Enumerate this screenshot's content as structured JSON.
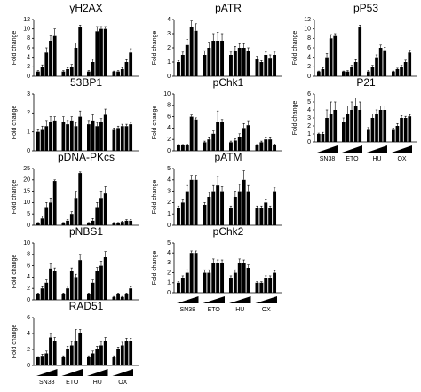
{
  "chart_data": [
    {
      "type": "bar",
      "title": "γH2AX",
      "y_label": "Fold change",
      "ylim": [
        0,
        12
      ],
      "yticks": [
        0,
        2,
        4,
        6,
        8,
        10,
        12
      ],
      "values": [
        1,
        2,
        5,
        7.5,
        8.5,
        1,
        1.5,
        2,
        6,
        10.5,
        1,
        3,
        9.5,
        10,
        10,
        1,
        1,
        1.5,
        3,
        5
      ],
      "errors": [
        0.2,
        0.4,
        1,
        1,
        1.5,
        0.2,
        0.3,
        0.5,
        1,
        0.3,
        0.2,
        0.6,
        1,
        0.5,
        0.5,
        0.1,
        0.2,
        0.3,
        0.5,
        0.8
      ]
    },
    {
      "type": "bar",
      "title": "53BP1",
      "y_label": "Fold change",
      "ylim": [
        0,
        3
      ],
      "yticks": [
        0,
        1,
        2,
        3
      ],
      "values": [
        1,
        1.1,
        1.3,
        1.5,
        1.6,
        1.5,
        1.4,
        1.6,
        1.3,
        1.8,
        1.4,
        1.6,
        1.3,
        1.5,
        1.9,
        1.1,
        1.2,
        1.3,
        1.3,
        1.4
      ],
      "errors": [
        0.1,
        0.2,
        0.3,
        0.3,
        0.2,
        0.3,
        0.2,
        0.2,
        0.2,
        0.3,
        0.2,
        0.3,
        0.2,
        0.2,
        0.3,
        0.1,
        0.1,
        0.1,
        0.1,
        0.1
      ]
    },
    {
      "type": "bar",
      "title": "pDNA-PKcs",
      "y_label": "Fold change",
      "ylim": [
        0,
        25
      ],
      "yticks": [
        0,
        5,
        10,
        15,
        20,
        25
      ],
      "values": [
        1,
        3,
        8,
        10,
        19.5,
        1,
        2,
        5,
        12,
        23,
        1,
        2,
        8,
        12,
        14,
        1,
        1,
        1.5,
        2,
        2
      ],
      "errors": [
        0.2,
        1,
        2,
        2,
        0.5,
        0.2,
        0.5,
        1,
        3,
        0.5,
        0.2,
        1,
        2,
        3,
        3,
        0.2,
        0.2,
        0.3,
        0.5,
        0.5
      ]
    },
    {
      "type": "bar",
      "title": "pNBS1",
      "y_label": "Fold change",
      "ylim": [
        0,
        10
      ],
      "yticks": [
        0,
        2,
        4,
        6,
        8,
        10
      ],
      "values": [
        1,
        2,
        3,
        5.5,
        5,
        1,
        2,
        5,
        4,
        7,
        1,
        3,
        5,
        6,
        7.5,
        0.5,
        1,
        0.5,
        1,
        2
      ],
      "errors": [
        0.2,
        0.3,
        0.5,
        0.8,
        0.6,
        0.2,
        0.4,
        0.6,
        0.5,
        1,
        0.2,
        0.5,
        0.7,
        0.8,
        1,
        0.1,
        0.2,
        0.1,
        0.2,
        0.3
      ]
    },
    {
      "type": "bar",
      "title": "RAD51",
      "y_label": "Fold change",
      "ylim": [
        0,
        6
      ],
      "yticks": [
        0,
        2,
        4,
        6
      ],
      "values": [
        1,
        1.2,
        1.5,
        3.5,
        3,
        1,
        2,
        2.5,
        3,
        4,
        1,
        1.5,
        2,
        2.5,
        3,
        1,
        2,
        2.5,
        3,
        3
      ],
      "errors": [
        0.1,
        0.2,
        0.3,
        0.5,
        0.5,
        0.2,
        0.4,
        0.5,
        1.5,
        0.5,
        0.2,
        0.3,
        0.4,
        0.5,
        0.5,
        0.2,
        0.3,
        0.4,
        0.4,
        0.4
      ],
      "groups": [
        "SN38",
        "ETO",
        "HU",
        "OX"
      ]
    },
    {
      "type": "bar",
      "title": "pATR",
      "y_label": "Fold change",
      "ylim": [
        0,
        4
      ],
      "yticks": [
        0,
        1,
        2,
        3,
        4
      ],
      "values": [
        1,
        1.5,
        2.2,
        3.5,
        3.2,
        1.5,
        2,
        2.5,
        2.5,
        2.5,
        1.5,
        1.8,
        2,
        2,
        1.8,
        1.2,
        1,
        1.5,
        1.3,
        1.5
      ],
      "errors": [
        0.1,
        0.2,
        0.4,
        0.4,
        0.5,
        0.3,
        0.4,
        0.5,
        0.6,
        0.5,
        0.2,
        0.3,
        0.3,
        0.3,
        0.2,
        0.2,
        0.1,
        0.2,
        0.2,
        0.2
      ]
    },
    {
      "type": "bar",
      "title": "pChk1",
      "y_label": "Fold change",
      "ylim": [
        0,
        10
      ],
      "yticks": [
        0,
        2,
        4,
        6,
        8,
        10
      ],
      "values": [
        1,
        1,
        1,
        6,
        5.5,
        1.5,
        2,
        3,
        5,
        5,
        1.5,
        1.8,
        2.5,
        4,
        4.5,
        1,
        1.5,
        2,
        2,
        1
      ],
      "errors": [
        0.1,
        0.1,
        0.2,
        0.3,
        0.3,
        0.2,
        0.3,
        0.5,
        2,
        0.5,
        0.2,
        0.3,
        0.5,
        0.8,
        0.8,
        0.1,
        0.2,
        0.3,
        0.3,
        0.2
      ]
    },
    {
      "type": "bar",
      "title": "pATM",
      "y_label": "Fold change",
      "ylim": [
        0,
        5
      ],
      "yticks": [
        0,
        1,
        2,
        3,
        4,
        5
      ],
      "values": [
        1.5,
        2,
        3,
        4,
        4,
        1.8,
        2.5,
        3,
        3.5,
        3,
        1.5,
        2.5,
        3,
        4,
        3,
        1.5,
        1.5,
        2,
        1.5,
        3
      ],
      "errors": [
        0.2,
        0.3,
        0.5,
        0.4,
        0.4,
        0.2,
        0.4,
        0.5,
        0.8,
        0.4,
        0.2,
        0.5,
        0.6,
        0.8,
        0.5,
        0.2,
        0.2,
        0.3,
        0.2,
        0.3
      ]
    },
    {
      "type": "bar",
      "title": "pChk2",
      "y_label": "Fold change",
      "ylim": [
        0,
        5
      ],
      "yticks": [
        0,
        1,
        2,
        3,
        4,
        5
      ],
      "values": [
        1,
        1.5,
        2,
        4,
        4,
        2,
        2,
        3,
        3,
        3,
        1.5,
        2,
        3,
        3,
        2.5,
        1,
        1,
        1.5,
        1.5,
        2
      ],
      "errors": [
        0.1,
        0.2,
        0.3,
        0.2,
        0.2,
        0.3,
        0.3,
        0.4,
        0.3,
        0.3,
        0.2,
        0.3,
        0.4,
        0.3,
        0.3,
        0.1,
        0.1,
        0.2,
        0.2,
        0.2
      ],
      "groups": [
        "SN38",
        "ETO",
        "HU",
        "OX"
      ]
    },
    {
      "type": "bar",
      "title": "pP53",
      "y_label": "Fold change",
      "ylim": [
        0,
        12
      ],
      "yticks": [
        0,
        2,
        4,
        6,
        8,
        10,
        12
      ],
      "values": [
        1,
        1.5,
        4,
        8,
        8.5,
        1,
        1,
        2,
        3,
        10.5,
        1,
        2,
        4,
        6,
        5.5,
        1,
        1.5,
        2,
        3,
        5
      ],
      "errors": [
        0.1,
        0.3,
        0.8,
        0.8,
        0.5,
        0.1,
        0.2,
        0.3,
        0.5,
        0.3,
        0.2,
        0.3,
        0.5,
        0.6,
        0.6,
        0.1,
        0.2,
        0.3,
        0.4,
        0.5
      ]
    },
    {
      "type": "bar",
      "title": "P21",
      "y_label": "Fold change",
      "ylim": [
        0,
        6
      ],
      "yticks": [
        0,
        1,
        2,
        3,
        4,
        5,
        6
      ],
      "values": [
        1,
        1,
        3,
        3.5,
        4,
        2.5,
        3.5,
        4,
        4.5,
        4,
        1.5,
        3,
        3.5,
        4,
        4,
        1.5,
        2,
        3,
        3,
        3.2
      ],
      "errors": [
        0.1,
        0.2,
        1,
        1.5,
        1,
        0.5,
        1,
        1,
        1,
        1,
        0.3,
        0.5,
        0.5,
        0.5,
        0.5,
        0.2,
        0.3,
        0.3,
        0.2,
        0.2
      ],
      "groups": [
        "SN38",
        "ETO",
        "HU",
        "OX"
      ]
    }
  ]
}
